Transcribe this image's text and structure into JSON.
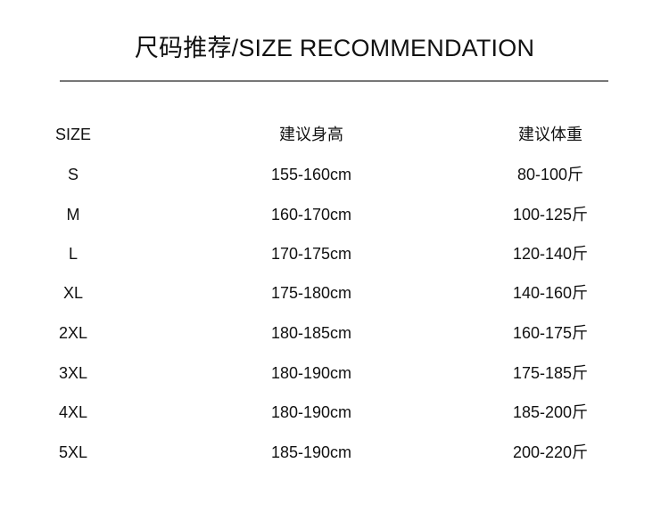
{
  "title": "尺码推荐/SIZE RECOMMENDATION",
  "table": {
    "headers": [
      "SIZE",
      "建议身高",
      "建议体重"
    ],
    "rows": [
      [
        "S",
        "155-160cm",
        "80-100斤"
      ],
      [
        "M",
        "160-170cm",
        "100-125斤"
      ],
      [
        "L",
        "170-175cm",
        "120-140斤"
      ],
      [
        "XL",
        "175-180cm",
        "140-160斤"
      ],
      [
        "2XL",
        "180-185cm",
        "160-175斤"
      ],
      [
        "3XL",
        "180-190cm",
        "175-185斤"
      ],
      [
        "4XL",
        "180-190cm",
        "185-200斤"
      ],
      [
        "5XL",
        "185-190cm",
        "200-220斤"
      ]
    ]
  }
}
